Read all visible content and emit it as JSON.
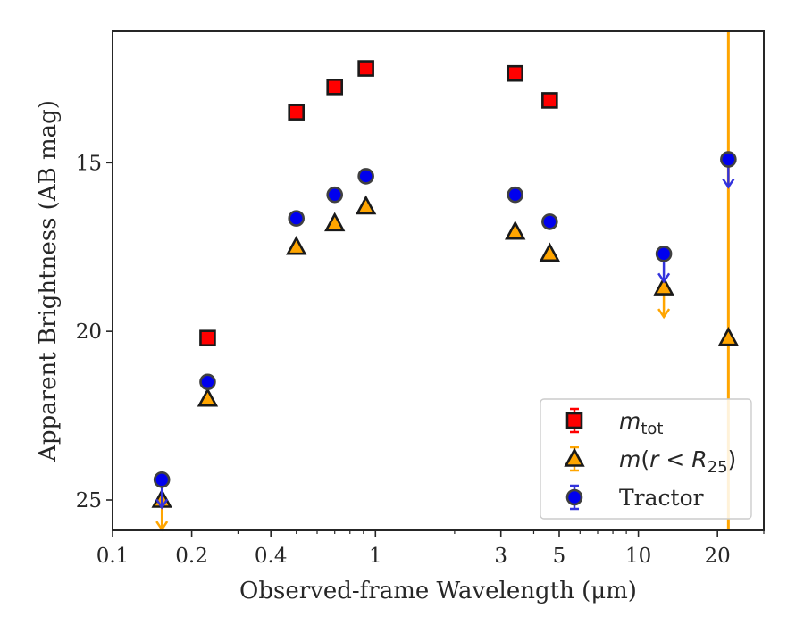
{
  "chart_data": {
    "type": "scatter",
    "xlabel": "Observed-frame Wavelength (μm)",
    "ylabel": "Apparent Brightness (AB mag)",
    "xscale": "log",
    "xlim": [
      0.1,
      30
    ],
    "ylim": [
      25.9,
      11.1
    ],
    "y_inverted": true,
    "xticks": [
      {
        "value": 0.1,
        "label": "0.1"
      },
      {
        "value": 0.2,
        "label": "0.2"
      },
      {
        "value": 0.4,
        "label": "0.4"
      },
      {
        "value": 1,
        "label": "1"
      },
      {
        "value": 3,
        "label": "3"
      },
      {
        "value": 5,
        "label": "5"
      },
      {
        "value": 10,
        "label": "10"
      },
      {
        "value": 20,
        "label": "20"
      }
    ],
    "yticks": [
      {
        "value": 15,
        "label": "15"
      },
      {
        "value": 20,
        "label": "20"
      },
      {
        "value": 25,
        "label": "25"
      }
    ],
    "grid": false,
    "legend_position": "bottom-right",
    "series": [
      {
        "name": "m_tot",
        "marker": "square",
        "color": "#ff0000",
        "edge_color": "#1a1a1a",
        "errorbar_color": "#ff0000",
        "points": [
          {
            "x": 0.23,
            "y": 20.2
          },
          {
            "x": 0.5,
            "y": 13.5
          },
          {
            "x": 0.7,
            "y": 12.75
          },
          {
            "x": 0.92,
            "y": 12.2
          },
          {
            "x": 3.4,
            "y": 12.35
          },
          {
            "x": 4.6,
            "y": 13.15
          }
        ]
      },
      {
        "name": "m(r < R_25)",
        "marker": "triangle",
        "color": "#ffa500",
        "edge_color": "#1a1a1a",
        "errorbar_color": "#ffa500",
        "points": [
          {
            "x": 0.154,
            "y": 25.0,
            "upper_limit": true
          },
          {
            "x": 0.23,
            "y": 22.0
          },
          {
            "x": 0.5,
            "y": 17.5
          },
          {
            "x": 0.7,
            "y": 16.8
          },
          {
            "x": 0.92,
            "y": 16.3
          },
          {
            "x": 3.4,
            "y": 17.05
          },
          {
            "x": 4.6,
            "y": 17.7
          },
          {
            "x": 12.5,
            "y": 18.7,
            "upper_limit": true
          },
          {
            "x": 22,
            "y": 20.2,
            "full_range_error": true
          }
        ]
      },
      {
        "name": "Tractor",
        "marker": "circle",
        "color": "#0000ee",
        "edge_color": "#404040",
        "errorbar_color": "#3333dd",
        "points": [
          {
            "x": 0.154,
            "y": 24.4,
            "upper_limit": true
          },
          {
            "x": 0.23,
            "y": 21.5
          },
          {
            "x": 0.5,
            "y": 16.65
          },
          {
            "x": 0.7,
            "y": 15.95
          },
          {
            "x": 0.92,
            "y": 15.4
          },
          {
            "x": 3.4,
            "y": 15.95
          },
          {
            "x": 4.6,
            "y": 16.75
          },
          {
            "x": 12.5,
            "y": 17.7,
            "upper_limit": true
          },
          {
            "x": 22,
            "y": 14.9,
            "upper_limit": true
          }
        ]
      }
    ]
  }
}
